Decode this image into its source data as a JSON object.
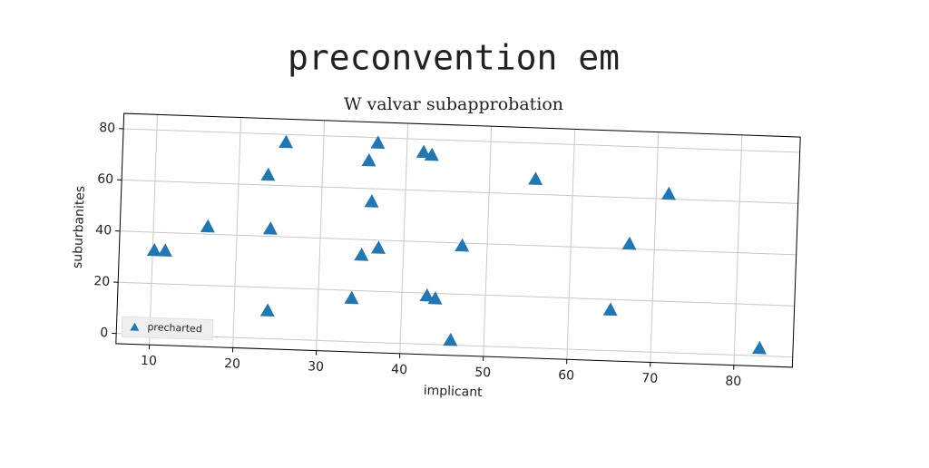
{
  "chart_data": {
    "type": "scatter",
    "title": "preconvention em",
    "subtitle": "W valvar subapprobation",
    "x_label": "implicant",
    "y_label": "suburbanites",
    "series": [
      {
        "name": "precharted",
        "color": "#1f77b4",
        "marker": "triangle",
        "x": [
          10.2,
          11.5,
          16.5,
          23.5,
          24,
          24,
          25.5,
          34,
          35,
          35.5,
          36,
          36.5,
          37,
          42,
          43,
          43,
          44,
          46,
          47,
          55.5,
          65,
          67,
          71.5,
          83
        ],
        "values": [
          33,
          33,
          43,
          64,
          43,
          11,
          77,
          17,
          34,
          71,
          55,
          78,
          37,
          75,
          74,
          19,
          18,
          2,
          39,
          66,
          16,
          42,
          62,
          3
        ]
      }
    ],
    "xlim": [
      6,
      87
    ],
    "ylim": [
      -4,
      86
    ],
    "xticks": [
      10,
      20,
      30,
      40,
      50,
      60,
      70,
      80
    ],
    "yticks": [
      0,
      20,
      40,
      60,
      80
    ],
    "grid": true,
    "legend": "lower left"
  }
}
